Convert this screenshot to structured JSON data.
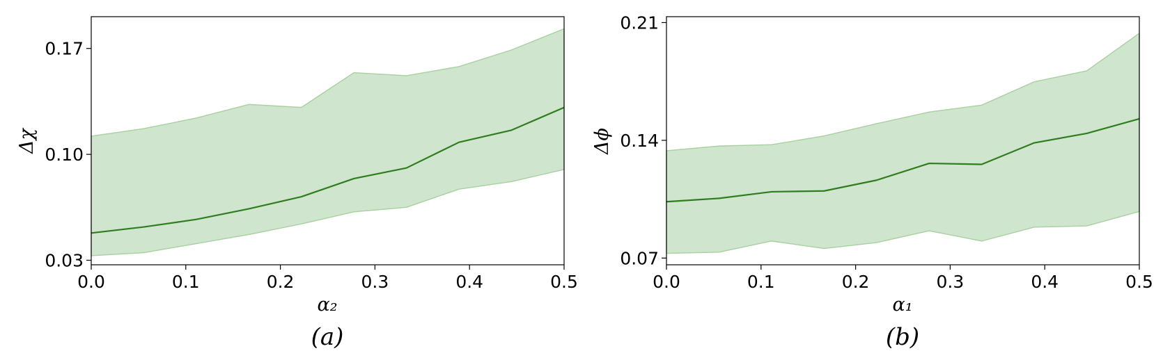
{
  "chart_data": [
    {
      "type": "line",
      "caption": "(a)",
      "xlabel": "α₂",
      "ylabel": "Δχ",
      "xlim": [
        0.0,
        0.5
      ],
      "ylim": [
        0.027,
        0.191
      ],
      "xticks": [
        0.0,
        0.1,
        0.2,
        0.3,
        0.4,
        0.5
      ],
      "xtick_labels": [
        "0.0",
        "0.1",
        "0.2",
        "0.3",
        "0.4",
        "0.5"
      ],
      "yticks": [
        0.03,
        0.1,
        0.17
      ],
      "ytick_labels": [
        "0.03",
        "0.10",
        "0.17"
      ],
      "grid": false,
      "x": [
        0.0,
        0.0556,
        0.1111,
        0.1667,
        0.2222,
        0.2778,
        0.3333,
        0.3889,
        0.4444,
        0.5
      ],
      "series": [
        {
          "role": "mean",
          "color": "#2e7d1f",
          "values": [
            0.048,
            0.052,
            0.057,
            0.064,
            0.072,
            0.084,
            0.091,
            0.108,
            0.116,
            0.131
          ]
        },
        {
          "role": "upper-bound",
          "color": "#a8d0a0",
          "values": [
            0.112,
            0.117,
            0.124,
            0.133,
            0.131,
            0.154,
            0.152,
            0.158,
            0.169,
            0.183
          ]
        },
        {
          "role": "lower-bound",
          "color": "#a8d0a0",
          "values": [
            0.033,
            0.035,
            0.041,
            0.047,
            0.054,
            0.062,
            0.065,
            0.077,
            0.082,
            0.09
          ]
        }
      ],
      "band_color": "#d0e5cd"
    },
    {
      "type": "line",
      "caption": "(b)",
      "xlabel": "α₁",
      "ylabel": "Δϕ",
      "xlim": [
        0.0,
        0.5
      ],
      "ylim": [
        0.066,
        0.2135
      ],
      "xticks": [
        0.0,
        0.1,
        0.2,
        0.3,
        0.4,
        0.5
      ],
      "xtick_labels": [
        "0.0",
        "0.1",
        "0.2",
        "0.3",
        "0.4",
        "0.5"
      ],
      "yticks": [
        0.07,
        0.14,
        0.21
      ],
      "ytick_labels": [
        "0.07",
        "0.14",
        "0.21"
      ],
      "grid": false,
      "x": [
        0.0,
        0.0556,
        0.1111,
        0.1667,
        0.2222,
        0.2778,
        0.3333,
        0.3889,
        0.4444,
        0.5
      ],
      "series": [
        {
          "role": "mean",
          "color": "#2e7d1f",
          "values": [
            0.1035,
            0.1055,
            0.1094,
            0.1099,
            0.1163,
            0.1263,
            0.1257,
            0.1385,
            0.1441,
            0.1528
          ]
        },
        {
          "role": "upper-bound",
          "color": "#a8d0a0",
          "values": [
            0.1338,
            0.1366,
            0.1374,
            0.1426,
            0.1499,
            0.1568,
            0.1609,
            0.1748,
            0.1813,
            0.2036
          ]
        },
        {
          "role": "lower-bound",
          "color": "#a8d0a0",
          "values": [
            0.0728,
            0.0735,
            0.0801,
            0.0757,
            0.0792,
            0.0862,
            0.0801,
            0.0884,
            0.0891,
            0.0977
          ]
        }
      ],
      "band_color": "#d0e5cd"
    }
  ]
}
